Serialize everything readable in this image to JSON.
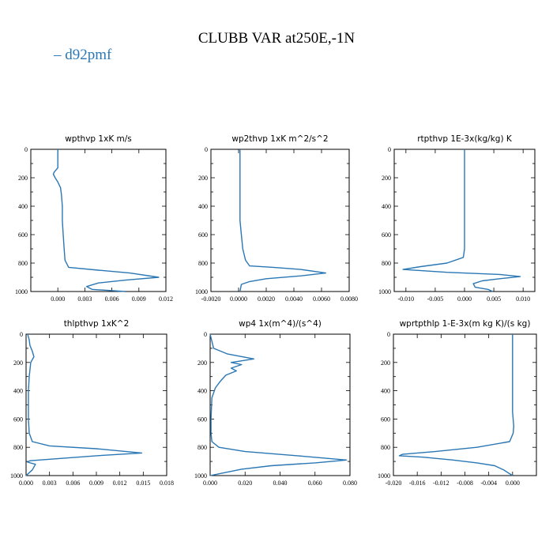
{
  "figure": {
    "title": "CLUBB VAR at250E,-1N",
    "legend": [
      {
        "name": "d92pmf",
        "color": "#2a77b4"
      }
    ]
  },
  "chart_data": [
    {
      "type": "line",
      "title": "wpthvp   1xK  m/s",
      "xlim": [
        -0.003,
        0.012
      ],
      "ylim": [
        1000,
        0
      ],
      "y_inverted": true,
      "xticks": [
        {
          "v": 0.0,
          "label": "0.000"
        },
        {
          "v": 0.003,
          "label": "0.003"
        },
        {
          "v": 0.006,
          "label": "0.006"
        },
        {
          "v": 0.009,
          "label": "0.009"
        },
        {
          "v": 0.012,
          "label": "0.012"
        }
      ],
      "yticks": [
        0,
        200,
        400,
        600,
        800,
        1000
      ],
      "series": [
        {
          "name": "d92pmf",
          "color": "#2a77b4",
          "points": [
            [
              0.0,
              0
            ],
            [
              0.0,
              60
            ],
            [
              0.0,
              130
            ],
            [
              -0.0004,
              160
            ],
            [
              -0.0005,
              175
            ],
            [
              -0.0003,
              200
            ],
            [
              0.0,
              230
            ],
            [
              0.0003,
              270
            ],
            [
              0.0004,
              320
            ],
            [
              0.0005,
              400
            ],
            [
              0.0005,
              500
            ],
            [
              0.0006,
              600
            ],
            [
              0.0007,
              700
            ],
            [
              0.0008,
              780
            ],
            [
              0.0012,
              830
            ],
            [
              0.0045,
              850
            ],
            [
              0.008,
              870
            ],
            [
              0.0112,
              900
            ],
            [
              0.0075,
              920
            ],
            [
              0.0045,
              940
            ],
            [
              0.0032,
              965
            ],
            [
              0.0038,
              985
            ],
            [
              0.0075,
              1000
            ]
          ]
        }
      ]
    },
    {
      "type": "line",
      "title": "wp2thvp   1xK  m^2/s^2",
      "xlim": [
        -0.002,
        0.008
      ],
      "ylim": [
        1000,
        0
      ],
      "y_inverted": true,
      "xticks": [
        {
          "v": -0.002,
          "label": "-0.0020"
        },
        {
          "v": 0.0,
          "label": "0.0000"
        },
        {
          "v": 0.002,
          "label": "0.0020"
        },
        {
          "v": 0.004,
          "label": "0.0040"
        },
        {
          "v": 0.006,
          "label": "0.0060"
        },
        {
          "v": 0.008,
          "label": "0.0080"
        }
      ],
      "yticks": [
        0,
        200,
        400,
        600,
        800,
        1000
      ],
      "series": [
        {
          "name": "d92pmf",
          "color": "#2a77b4",
          "points": [
            [
              0.0001,
              0
            ],
            [
              0.0001,
              100
            ],
            [
              0.0001,
              200
            ],
            [
              0.0001,
              300
            ],
            [
              0.0001,
              400
            ],
            [
              0.0001,
              500
            ],
            [
              0.0002,
              600
            ],
            [
              0.0003,
              700
            ],
            [
              0.0005,
              780
            ],
            [
              0.0008,
              820
            ],
            [
              0.0025,
              830
            ],
            [
              0.0045,
              845
            ],
            [
              0.0063,
              870
            ],
            [
              0.0045,
              890
            ],
            [
              0.002,
              910
            ],
            [
              0.0008,
              930
            ],
            [
              0.0002,
              950
            ],
            [
              0.0001,
              1000
            ]
          ]
        }
      ]
    },
    {
      "type": "line",
      "title": "rtpthvp   1E-3x(kg/kg)  K",
      "xlim": [
        -0.012,
        0.012
      ],
      "ylim": [
        1000,
        0
      ],
      "y_inverted": true,
      "xticks": [
        {
          "v": -0.01,
          "label": "-0.010"
        },
        {
          "v": -0.005,
          "label": "-0.005"
        },
        {
          "v": 0.0,
          "label": "0.000"
        },
        {
          "v": 0.005,
          "label": "0.005"
        },
        {
          "v": 0.01,
          "label": "0.010"
        }
      ],
      "yticks": [
        0,
        200,
        400,
        600,
        800,
        1000
      ],
      "series": [
        {
          "name": "d92pmf",
          "color": "#2a77b4",
          "points": [
            [
              0.0,
              0
            ],
            [
              0.0,
              200
            ],
            [
              0.0,
              400
            ],
            [
              0.0,
              600
            ],
            [
              0.0,
              700
            ],
            [
              -0.0002,
              760
            ],
            [
              -0.003,
              800
            ],
            [
              -0.0075,
              825
            ],
            [
              -0.0105,
              845
            ],
            [
              -0.003,
              865
            ],
            [
              0.006,
              880
            ],
            [
              0.0095,
              895
            ],
            [
              0.006,
              910
            ],
            [
              0.003,
              925
            ],
            [
              0.0015,
              945
            ],
            [
              0.0018,
              970
            ],
            [
              0.004,
              985
            ],
            [
              0.0048,
              1000
            ]
          ]
        }
      ]
    },
    {
      "type": "line",
      "title": "thlpthvp   1xK^2",
      "xlim": [
        0.0,
        0.018
      ],
      "ylim": [
        1000,
        0
      ],
      "y_inverted": true,
      "xticks": [
        {
          "v": 0.0,
          "label": "0.000"
        },
        {
          "v": 0.003,
          "label": "0.003"
        },
        {
          "v": 0.006,
          "label": "0.006"
        },
        {
          "v": 0.009,
          "label": "0.009"
        },
        {
          "v": 0.012,
          "label": "0.012"
        },
        {
          "v": 0.015,
          "label": "0.015"
        },
        {
          "v": 0.018,
          "label": "0.018"
        }
      ],
      "yticks": [
        0,
        200,
        400,
        600,
        800,
        1000
      ],
      "series": [
        {
          "name": "d92pmf",
          "color": "#2a77b4",
          "points": [
            [
              0.0002,
              0
            ],
            [
              0.0004,
              40
            ],
            [
              0.0005,
              80
            ],
            [
              0.0008,
              120
            ],
            [
              0.001,
              160
            ],
            [
              0.0006,
              200
            ],
            [
              0.0004,
              300
            ],
            [
              0.0003,
              400
            ],
            [
              0.0003,
              500
            ],
            [
              0.0003,
              600
            ],
            [
              0.0004,
              700
            ],
            [
              0.0008,
              760
            ],
            [
              0.003,
              790
            ],
            [
              0.009,
              810
            ],
            [
              0.0148,
              840
            ],
            [
              0.009,
              860
            ],
            [
              0.0005,
              895
            ],
            [
              0.0002,
              905
            ],
            [
              0.0012,
              920
            ],
            [
              0.0008,
              960
            ],
            [
              0.0,
              1000
            ]
          ]
        }
      ]
    },
    {
      "type": "line",
      "title": "wp4   1x(m^4)/(s^4)",
      "xlim": [
        0.0,
        0.08
      ],
      "ylim": [
        1000,
        0
      ],
      "y_inverted": true,
      "xticks": [
        {
          "v": 0.0,
          "label": "0.000"
        },
        {
          "v": 0.02,
          "label": "0.020"
        },
        {
          "v": 0.04,
          "label": "0.040"
        },
        {
          "v": 0.06,
          "label": "0.060"
        },
        {
          "v": 0.08,
          "label": "0.080"
        }
      ],
      "yticks": [
        0,
        200,
        400,
        600,
        800,
        1000
      ],
      "series": [
        {
          "name": "d92pmf",
          "color": "#2a77b4",
          "points": [
            [
              0.0,
              0
            ],
            [
              0.002,
              100
            ],
            [
              0.01,
              140
            ],
            [
              0.025,
              175
            ],
            [
              0.012,
              200
            ],
            [
              0.018,
              215
            ],
            [
              0.012,
              240
            ],
            [
              0.015,
              260
            ],
            [
              0.009,
              290
            ],
            [
              0.006,
              330
            ],
            [
              0.003,
              380
            ],
            [
              0.001,
              450
            ],
            [
              0.0005,
              600
            ],
            [
              0.0005,
              700
            ],
            [
              0.001,
              760
            ],
            [
              0.005,
              800
            ],
            [
              0.02,
              830
            ],
            [
              0.05,
              860
            ],
            [
              0.078,
              890
            ],
            [
              0.06,
              910
            ],
            [
              0.035,
              930
            ],
            [
              0.018,
              955
            ],
            [
              0.008,
              980
            ],
            [
              0.0,
              1000
            ]
          ]
        }
      ]
    },
    {
      "type": "line",
      "title": "wprtpthlp   1-E-3x(m  kg  K)/(s  kg)",
      "xlim": [
        -0.02,
        0.004
      ],
      "ylim": [
        1000,
        0
      ],
      "y_inverted": true,
      "xticks": [
        {
          "v": -0.02,
          "label": "-0.020"
        },
        {
          "v": -0.016,
          "label": "-0.016"
        },
        {
          "v": -0.012,
          "label": "-0.012"
        },
        {
          "v": -0.008,
          "label": "-0.008"
        },
        {
          "v": -0.004,
          "label": "-0.004"
        },
        {
          "v": 0.0,
          "label": "0.000"
        }
      ],
      "yticks": [
        0,
        200,
        400,
        600,
        800,
        1000
      ],
      "series": [
        {
          "name": "d92pmf",
          "color": "#2a77b4",
          "points": [
            [
              0.0,
              0
            ],
            [
              0.0,
              200
            ],
            [
              0.0,
              400
            ],
            [
              0.0,
              550
            ],
            [
              0.0002,
              650
            ],
            [
              0.0001,
              700
            ],
            [
              -0.0005,
              760
            ],
            [
              -0.006,
              800
            ],
            [
              -0.013,
              830
            ],
            [
              -0.0185,
              850
            ],
            [
              -0.019,
              860
            ],
            [
              -0.015,
              870
            ],
            [
              -0.01,
              890
            ],
            [
              -0.006,
              910
            ],
            [
              -0.003,
              930
            ],
            [
              -0.0015,
              960
            ],
            [
              0.0,
              1000
            ]
          ]
        }
      ]
    }
  ]
}
